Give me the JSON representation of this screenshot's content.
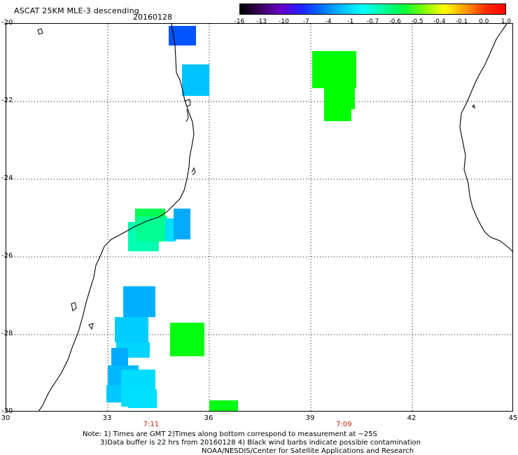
{
  "header": {
    "title": "ASCAT 25KM MLE-3 descending",
    "date": "20160128"
  },
  "colorbar": {
    "labels": [
      "-16",
      "-13",
      "-10",
      "-7",
      "-4",
      "-1",
      "-0.7",
      "-0.6",
      "-0.5",
      "-0.4",
      "-0.1",
      "0.0",
      "1.0"
    ],
    "colors": [
      "#000000",
      "#3a0060",
      "#6a00c8",
      "#2020ff",
      "#0070ff",
      "#00c0ff",
      "#00ffff",
      "#00ffa0",
      "#00ff40",
      "#80ff00",
      "#ffff00",
      "#ffa000",
      "#ff3000",
      "#ff0000"
    ]
  },
  "axes": {
    "x_ticks": [
      "30",
      "33",
      "36",
      "39",
      "42",
      "45"
    ],
    "y_ticks": [
      "-20",
      "-22",
      "-24",
      "-26",
      "-28",
      "-30"
    ],
    "lon_range": [
      30,
      45
    ],
    "lat_range": [
      -30,
      -20
    ]
  },
  "pass_times": [
    {
      "label": "7:11",
      "lon": 34.3
    },
    {
      "label": "7:09",
      "lon": 40.0
    }
  ],
  "cells": [
    {
      "lon0": 34.8,
      "lon1": 35.6,
      "lat0": -20.55,
      "lat1": -20.05,
      "color": "#0055ff"
    },
    {
      "lon0": 35.2,
      "lon1": 36.0,
      "lat0": -21.85,
      "lat1": -21.05,
      "color": "#00c4ff"
    },
    {
      "lon0": 39.05,
      "lon1": 40.35,
      "lat0": -21.65,
      "lat1": -20.7,
      "color": "#00ff00"
    },
    {
      "lon0": 39.4,
      "lon1": 40.3,
      "lat0": -22.2,
      "lat1": -21.6,
      "color": "#00ff00"
    },
    {
      "lon0": 39.4,
      "lon1": 40.2,
      "lat0": -22.5,
      "lat1": -22.15,
      "color": "#00ff00"
    },
    {
      "lon0": 33.8,
      "lon1": 34.7,
      "lat0": -25.3,
      "lat1": -24.75,
      "color": "#00ff50"
    },
    {
      "lon0": 33.6,
      "lon1": 34.5,
      "lat0": -25.85,
      "lat1": -25.1,
      "color": "#00ffb0"
    },
    {
      "lon0": 33.85,
      "lon1": 34.75,
      "lat0": -25.6,
      "lat1": -24.95,
      "color": "#00ff90"
    },
    {
      "lon0": 34.7,
      "lon1": 35.0,
      "lat0": -25.6,
      "lat1": -25.0,
      "color": "#00dfff"
    },
    {
      "lon0": 34.95,
      "lon1": 35.45,
      "lat0": -25.55,
      "lat1": -24.75,
      "color": "#00aaff"
    },
    {
      "lon0": 33.45,
      "lon1": 34.4,
      "lat0": -27.55,
      "lat1": -26.75,
      "color": "#00b0ff"
    },
    {
      "lon0": 33.2,
      "lon1": 34.2,
      "lat0": -28.2,
      "lat1": -27.55,
      "color": "#00ccff"
    },
    {
      "lon0": 33.25,
      "lon1": 34.25,
      "lat0": -28.6,
      "lat1": -28.2,
      "color": "#00d4ff"
    },
    {
      "lon0": 33.1,
      "lon1": 33.6,
      "lat0": -28.85,
      "lat1": -28.35,
      "color": "#00aaff"
    },
    {
      "lon0": 33.0,
      "lon1": 33.9,
      "lat0": -29.4,
      "lat1": -28.8,
      "color": "#00b8ff"
    },
    {
      "lon0": 32.95,
      "lon1": 33.6,
      "lat0": -29.75,
      "lat1": -29.3,
      "color": "#00c8ff"
    },
    {
      "lon0": 33.4,
      "lon1": 34.4,
      "lat0": -29.85,
      "lat1": -28.9,
      "color": "#00dcff"
    },
    {
      "lon0": 33.6,
      "lon1": 34.45,
      "lat0": -29.9,
      "lat1": -29.4,
      "color": "#00e0ff"
    },
    {
      "lon0": 34.85,
      "lon1": 35.85,
      "lat0": -28.55,
      "lat1": -27.7,
      "color": "#00ff10"
    },
    {
      "lon0": 36.0,
      "lon1": 36.85,
      "lat0": -30.05,
      "lat1": -29.7,
      "color": "#00ff10"
    }
  ],
  "notes": {
    "line1": "Note: 1) Times are GMT 2)Times along bottom correspond to measurement at ~25S",
    "line2": "3)Data buffer is 22 hrs from 20160128 4) Black wind barbs indicate possible contamination",
    "line3": "NOAA/NESDIS/Center for Satellite Applications and Research"
  }
}
